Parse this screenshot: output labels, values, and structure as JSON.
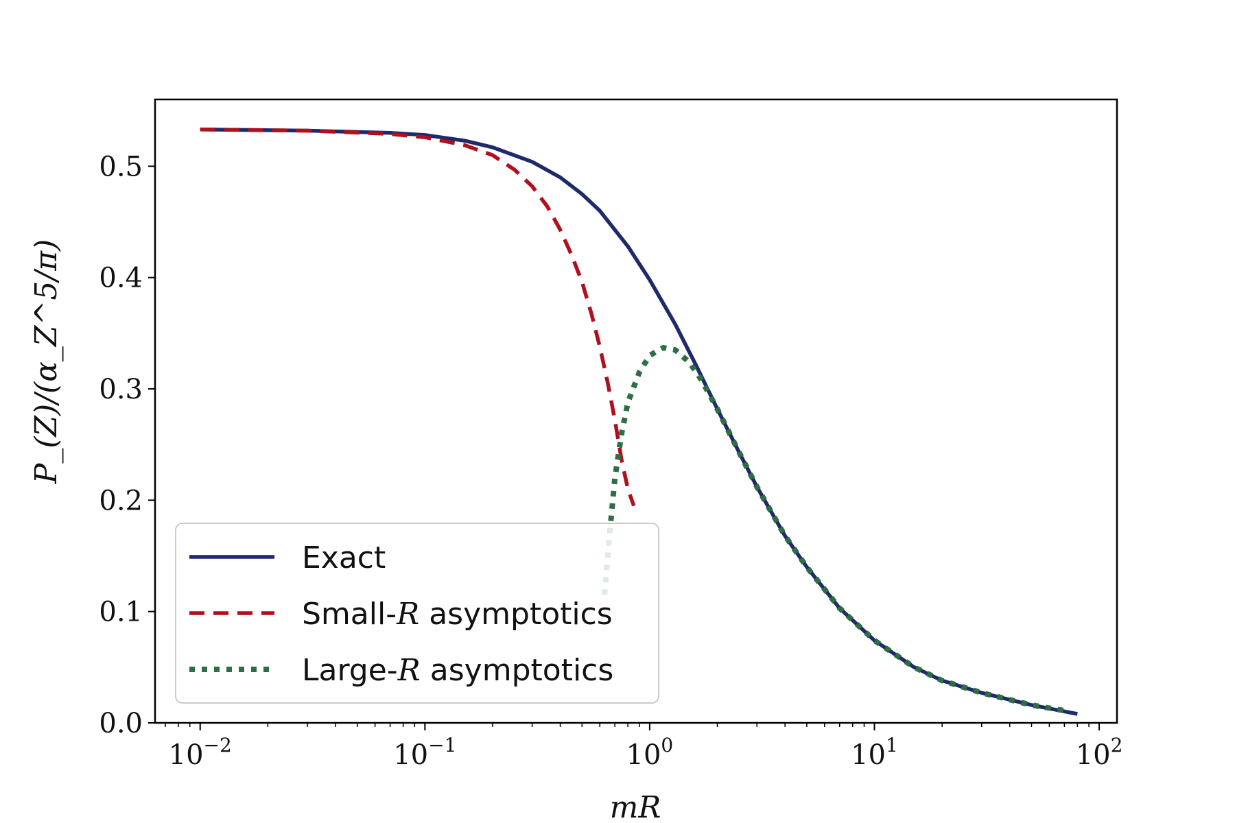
{
  "chart_data": {
    "type": "line",
    "xlabel": "mR",
    "ylabel": "P_(Z)/(α_Z^5/π)",
    "x_scale": "log",
    "xlim": [
      0.0063,
      120
    ],
    "ylim": [
      0.0,
      0.56
    ],
    "grid": false,
    "legend_position": "lower-left",
    "x_ticks": [
      {
        "value": 0.01,
        "base": "10",
        "exp": "−2"
      },
      {
        "value": 0.1,
        "base": "10",
        "exp": "−1"
      },
      {
        "value": 1,
        "base": "10",
        "exp": "0"
      },
      {
        "value": 10,
        "base": "10",
        "exp": "1"
      },
      {
        "value": 100,
        "base": "10",
        "exp": "2"
      }
    ],
    "y_ticks": [
      {
        "value": 0.0,
        "label": "0.0"
      },
      {
        "value": 0.1,
        "label": "0.1"
      },
      {
        "value": 0.2,
        "label": "0.2"
      },
      {
        "value": 0.3,
        "label": "0.3"
      },
      {
        "value": 0.4,
        "label": "0.4"
      },
      {
        "value": 0.5,
        "label": "0.5"
      }
    ],
    "series": [
      {
        "name": "Exact",
        "color": "#1f2a6b",
        "style": "solid",
        "points": [
          [
            0.01,
            0.533
          ],
          [
            0.03,
            0.532
          ],
          [
            0.07,
            0.53
          ],
          [
            0.1,
            0.528
          ],
          [
            0.15,
            0.523
          ],
          [
            0.2,
            0.517
          ],
          [
            0.3,
            0.504
          ],
          [
            0.4,
            0.49
          ],
          [
            0.5,
            0.475
          ],
          [
            0.6,
            0.46
          ],
          [
            0.8,
            0.428
          ],
          [
            1.0,
            0.398
          ],
          [
            1.3,
            0.358
          ],
          [
            1.6,
            0.322
          ],
          [
            2.0,
            0.282
          ],
          [
            2.5,
            0.243
          ],
          [
            3.0,
            0.212
          ],
          [
            4.0,
            0.168
          ],
          [
            5.0,
            0.14
          ],
          [
            7.0,
            0.103
          ],
          [
            10.0,
            0.074
          ],
          [
            15.0,
            0.05
          ],
          [
            20.0,
            0.038
          ],
          [
            30.0,
            0.027
          ],
          [
            50.0,
            0.016
          ],
          [
            80.0,
            0.008
          ]
        ]
      },
      {
        "name": "Small-R asymptotics",
        "label_prefix": "Small-",
        "label_var": "R",
        "label_suffix": " asymptotics",
        "color": "#b0101e",
        "style": "dashed",
        "points": [
          [
            0.01,
            0.533
          ],
          [
            0.03,
            0.532
          ],
          [
            0.07,
            0.529
          ],
          [
            0.1,
            0.526
          ],
          [
            0.15,
            0.519
          ],
          [
            0.2,
            0.51
          ],
          [
            0.25,
            0.497
          ],
          [
            0.3,
            0.482
          ],
          [
            0.35,
            0.464
          ],
          [
            0.4,
            0.443
          ],
          [
            0.45,
            0.42
          ],
          [
            0.5,
            0.396
          ],
          [
            0.55,
            0.368
          ],
          [
            0.6,
            0.338
          ],
          [
            0.65,
            0.306
          ],
          [
            0.7,
            0.272
          ],
          [
            0.75,
            0.236
          ],
          [
            0.8,
            0.21
          ],
          [
            0.85,
            0.195
          ]
        ]
      },
      {
        "name": "Large-R asymptotics",
        "label_prefix": "Large-",
        "label_var": "R",
        "label_suffix": " asymptotics",
        "color": "#2e6e44",
        "style": "dotted",
        "points": [
          [
            0.63,
            0.115
          ],
          [
            0.66,
            0.165
          ],
          [
            0.7,
            0.22
          ],
          [
            0.75,
            0.26
          ],
          [
            0.8,
            0.288
          ],
          [
            0.9,
            0.315
          ],
          [
            1.0,
            0.33
          ],
          [
            1.15,
            0.337
          ],
          [
            1.3,
            0.335
          ],
          [
            1.5,
            0.324
          ],
          [
            1.7,
            0.308
          ],
          [
            2.0,
            0.282
          ],
          [
            2.5,
            0.243
          ],
          [
            3.0,
            0.212
          ],
          [
            4.0,
            0.168
          ],
          [
            5.0,
            0.14
          ],
          [
            7.0,
            0.103
          ],
          [
            10.0,
            0.074
          ],
          [
            15.0,
            0.05
          ],
          [
            20.0,
            0.038
          ],
          [
            30.0,
            0.027
          ],
          [
            50.0,
            0.016
          ],
          [
            70.0,
            0.011
          ]
        ]
      }
    ]
  }
}
